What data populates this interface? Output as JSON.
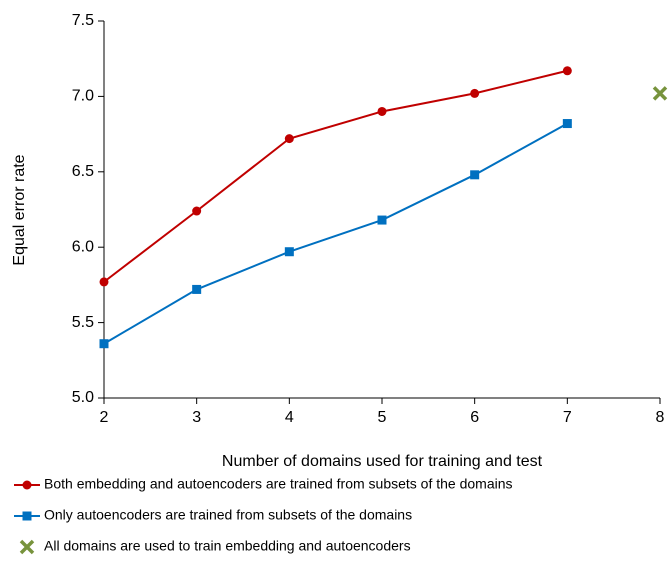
{
  "chart_data": {
    "type": "line",
    "xlabel": "Number of domains used for training and test",
    "ylabel": "Equal error rate",
    "xlim": [
      2,
      8
    ],
    "xticks": [
      2,
      3,
      4,
      5,
      6,
      7,
      8
    ],
    "ylim": [
      5.0,
      7.5
    ],
    "yticks": [
      {
        "value": 5.0,
        "label": "5.0"
      },
      {
        "value": 5.5,
        "label": "5.5"
      },
      {
        "value": 6.0,
        "label": "6.0"
      },
      {
        "value": 6.5,
        "label": "6.5"
      },
      {
        "value": 7.0,
        "label": "7.0"
      },
      {
        "value": 7.5,
        "label": "7.5"
      }
    ],
    "grid": false,
    "legend": "bottom",
    "series": [
      {
        "name": "Both embedding and autoencoders are trained from subsets of the domains",
        "color": "#c00000",
        "marker": "circle",
        "x": [
          2,
          3,
          4,
          5,
          6,
          7
        ],
        "values": [
          5.77,
          6.24,
          6.72,
          6.9,
          7.02,
          7.17
        ]
      },
      {
        "name": "Only autoencoders are trained from subsets of the domains",
        "color": "#0070c0",
        "marker": "square",
        "x": [
          2,
          3,
          4,
          5,
          6,
          7
        ],
        "values": [
          5.36,
          5.72,
          5.97,
          6.18,
          6.48,
          6.82
        ]
      },
      {
        "name": "All domains are used to train embedding and autoencoders",
        "color": "#77933c",
        "marker": "x",
        "x": [
          8
        ],
        "values": [
          7.02
        ]
      }
    ]
  }
}
